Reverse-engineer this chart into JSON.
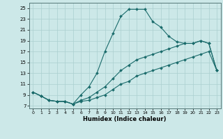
{
  "xlabel": "Humidex (Indice chaleur)",
  "ylabel": "",
  "xlim": [
    -0.5,
    23.5
  ],
  "ylim": [
    6.5,
    26.0
  ],
  "xticks": [
    0,
    1,
    2,
    3,
    4,
    5,
    6,
    7,
    8,
    9,
    10,
    11,
    12,
    13,
    14,
    15,
    16,
    17,
    18,
    19,
    20,
    21,
    22,
    23
  ],
  "yticks": [
    7,
    9,
    11,
    13,
    15,
    17,
    19,
    21,
    23,
    25
  ],
  "bg_color": "#cce8e8",
  "grid_color": "#aacfcf",
  "line_color": "#1a6b6b",
  "line1_x": [
    0,
    1,
    2,
    3,
    4,
    5,
    6,
    7,
    8,
    9,
    10,
    11,
    12,
    13,
    14,
    15,
    16,
    17,
    18,
    19,
    20,
    21,
    22,
    23
  ],
  "line1_y": [
    9.5,
    8.8,
    8.0,
    7.8,
    7.8,
    7.3,
    9.0,
    10.5,
    13.0,
    17.0,
    20.3,
    23.5,
    24.8,
    24.8,
    24.8,
    22.5,
    21.5,
    19.8,
    18.8,
    18.5,
    18.5,
    19.0,
    18.5,
    13.5
  ],
  "line2_x": [
    0,
    1,
    2,
    3,
    4,
    5,
    6,
    7,
    8,
    9,
    10,
    11,
    12,
    13,
    14,
    15,
    16,
    17,
    18,
    19,
    20,
    21,
    22,
    23
  ],
  "line2_y": [
    9.5,
    8.8,
    8.0,
    7.8,
    7.8,
    7.3,
    8.0,
    8.5,
    9.5,
    10.5,
    12.0,
    13.5,
    14.5,
    15.5,
    16.0,
    16.5,
    17.0,
    17.5,
    18.0,
    18.5,
    18.5,
    19.0,
    18.5,
    13.5
  ],
  "line3_x": [
    0,
    1,
    2,
    3,
    4,
    5,
    6,
    7,
    8,
    9,
    10,
    11,
    12,
    13,
    14,
    15,
    16,
    17,
    18,
    19,
    20,
    21,
    22,
    23
  ],
  "line3_y": [
    9.5,
    8.8,
    8.0,
    7.8,
    7.8,
    7.3,
    7.8,
    8.0,
    8.5,
    9.0,
    10.0,
    11.0,
    11.5,
    12.5,
    13.0,
    13.5,
    14.0,
    14.5,
    15.0,
    15.5,
    16.0,
    16.5,
    17.0,
    13.5
  ]
}
